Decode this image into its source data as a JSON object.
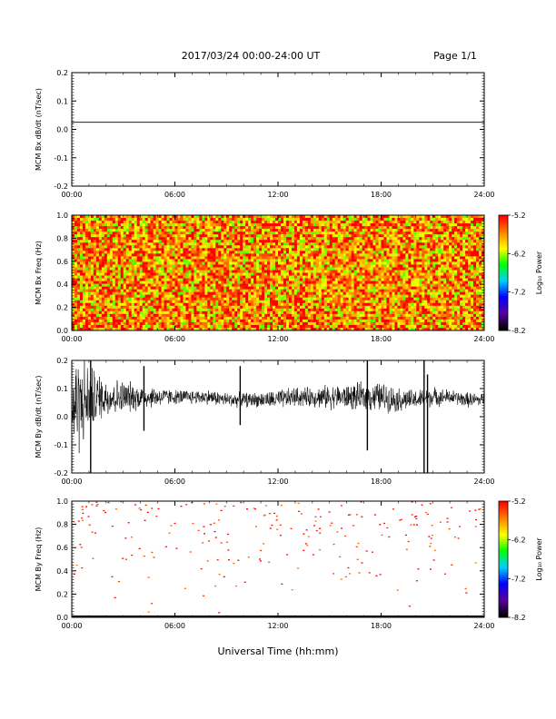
{
  "header": {
    "date_range": "2017/03/24  00:00-24:00 UT",
    "page": "Page 1/1"
  },
  "x_axis": {
    "title": "Universal Time (hh:mm)",
    "ticks": [
      "00:00",
      "06:00",
      "12:00",
      "18:00",
      "24:00"
    ],
    "range_hours": [
      0,
      24
    ]
  },
  "colorbar": {
    "label": "Log₁₀ Power",
    "ticks": [
      "-5.2",
      "-6.2",
      "-7.2",
      "-8.2"
    ],
    "range": [
      -8.2,
      -5.2
    ],
    "colors": [
      "#000000",
      "#5a00a0",
      "#0000ff",
      "#00d0ff",
      "#00ff00",
      "#ffff00",
      "#ff8000",
      "#ff0000"
    ]
  },
  "chart_data": [
    {
      "type": "line",
      "ylabel": "MCM Bx dB/dt (nT/sec)",
      "ylim": [
        -0.2,
        0.2
      ],
      "yticks": [
        "0.2",
        "0.1",
        "0.0",
        "-0.1",
        "-0.2"
      ],
      "series": [
        {
          "x": [
            0,
            24
          ],
          "y": [
            0.025,
            0.025
          ]
        }
      ]
    },
    {
      "type": "heatmap",
      "ylabel": "MCM Bx Freq (Hz)",
      "ylim": [
        0,
        1
      ],
      "yticks": [
        "1.0",
        "0.8",
        "0.6",
        "0.4",
        "0.2",
        "0.0"
      ],
      "fill": "dense",
      "typical_log_power": -5.6
    },
    {
      "type": "line",
      "ylabel": "MCM By dB/dt (nT/sec)",
      "ylim": [
        -0.2,
        0.2
      ],
      "yticks": [
        "0.2",
        "0.1",
        "0.0",
        "-0.1",
        "-0.2"
      ],
      "envelope": {
        "hours": [
          0,
          0.5,
          1,
          1.5,
          2,
          3,
          4,
          5,
          6,
          7,
          8,
          9,
          10,
          11,
          12,
          13,
          14,
          15,
          16,
          17,
          18,
          19,
          20,
          21,
          22,
          23,
          24
        ],
        "center": [
          0.03,
          0.05,
          0.06,
          0.07,
          0.07,
          0.07,
          0.07,
          0.07,
          0.07,
          0.07,
          0.07,
          0.06,
          0.06,
          0.06,
          0.06,
          0.07,
          0.07,
          0.07,
          0.07,
          0.07,
          0.07,
          0.06,
          0.06,
          0.07,
          0.07,
          0.06,
          0.06
        ],
        "half_width": [
          0.2,
          0.2,
          0.15,
          0.1,
          0.08,
          0.07,
          0.05,
          0.04,
          0.03,
          0.03,
          0.03,
          0.03,
          0.03,
          0.03,
          0.04,
          0.04,
          0.04,
          0.05,
          0.05,
          0.06,
          0.06,
          0.05,
          0.04,
          0.04,
          0.03,
          0.03,
          0.03
        ]
      },
      "spikes": [
        {
          "hour": 1.1,
          "min": -0.2,
          "max": 0.2
        },
        {
          "hour": 4.2,
          "min": -0.05,
          "max": 0.18
        },
        {
          "hour": 9.8,
          "min": -0.03,
          "max": 0.18
        },
        {
          "hour": 17.2,
          "min": -0.12,
          "max": 0.2
        },
        {
          "hour": 20.5,
          "min": -0.2,
          "max": 0.2
        },
        {
          "hour": 20.7,
          "min": -0.2,
          "max": 0.15
        }
      ]
    },
    {
      "type": "heatmap",
      "ylabel": "MCM By Freq (Hz)",
      "ylim": [
        0,
        1
      ],
      "yticks": [
        "1.0",
        "0.8",
        "0.6",
        "0.4",
        "0.2",
        "0.0"
      ],
      "fill": "sparse",
      "typical_log_power": -5.3
    }
  ]
}
